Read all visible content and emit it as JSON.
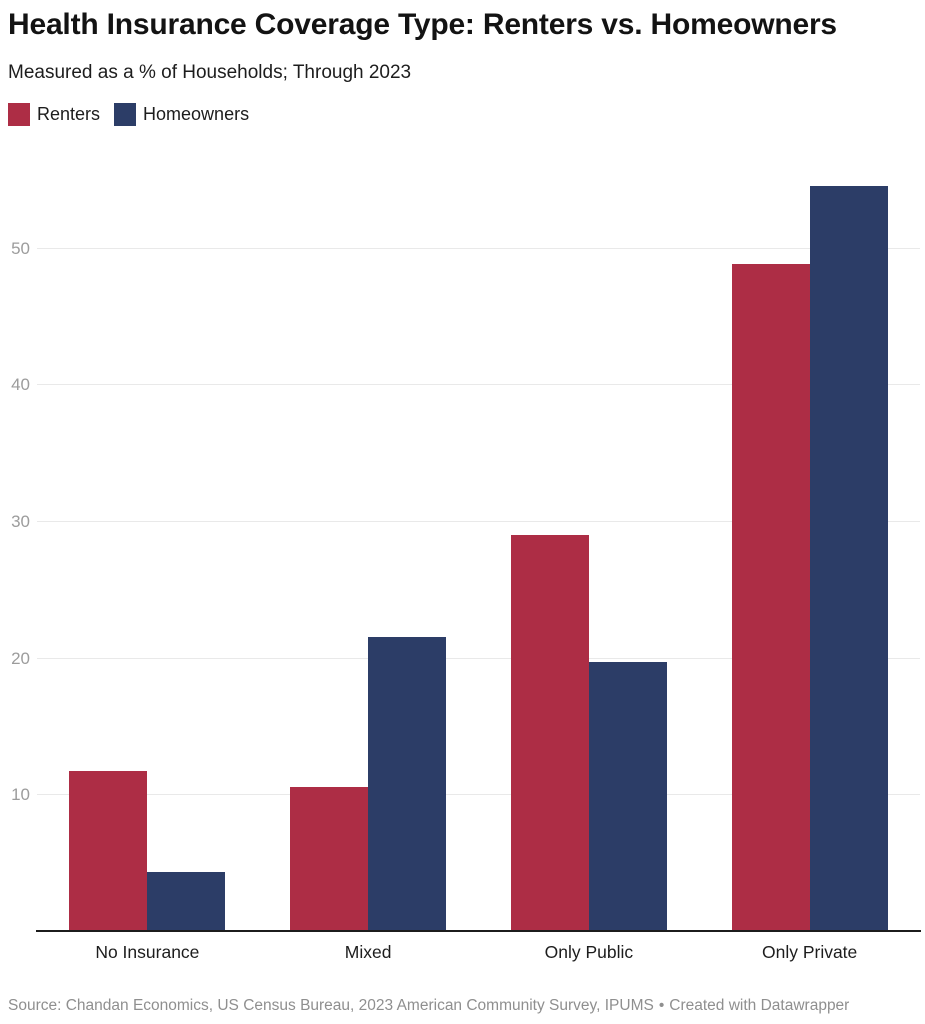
{
  "header": {
    "title": "Health Insurance Coverage Type: Renters vs. Homeowners",
    "subtitle": "Measured as a % of Households; Through 2023"
  },
  "legend": [
    {
      "label": "Renters",
      "color": "#ad2d45"
    },
    {
      "label": "Homeowners",
      "color": "#2c3d67"
    }
  ],
  "chart_data": {
    "type": "bar",
    "title": "Health Insurance Coverage Type: Renters vs. Homeowners",
    "subtitle": "Measured as a % of Households; Through 2023",
    "categories": [
      "No Insurance",
      "Mixed",
      "Only Public",
      "Only Private"
    ],
    "series": [
      {
        "name": "Renters",
        "color": "#ad2d45",
        "values": [
          11.7,
          10.5,
          29.0,
          48.8
        ]
      },
      {
        "name": "Homeowners",
        "color": "#2c3d67",
        "values": [
          4.3,
          21.5,
          19.7,
          54.5
        ]
      }
    ],
    "xlabel": "",
    "ylabel": "",
    "unit": "% of households",
    "yticks": [
      10,
      20,
      30,
      40,
      50
    ],
    "ylim": [
      0,
      56.5
    ],
    "grid": "horizontal",
    "legend_position": "top-left",
    "gridline_color": "#e9e9e9",
    "axis_line_color": "#1c1c1c",
    "tick_label_color": "#9c9c9c"
  },
  "footer": {
    "source_text": "Source: Chandan Economics, US Census Bureau, 2023 American Community Survey, IPUMS",
    "separator": "•",
    "attribution": "Created with Datawrapper"
  }
}
